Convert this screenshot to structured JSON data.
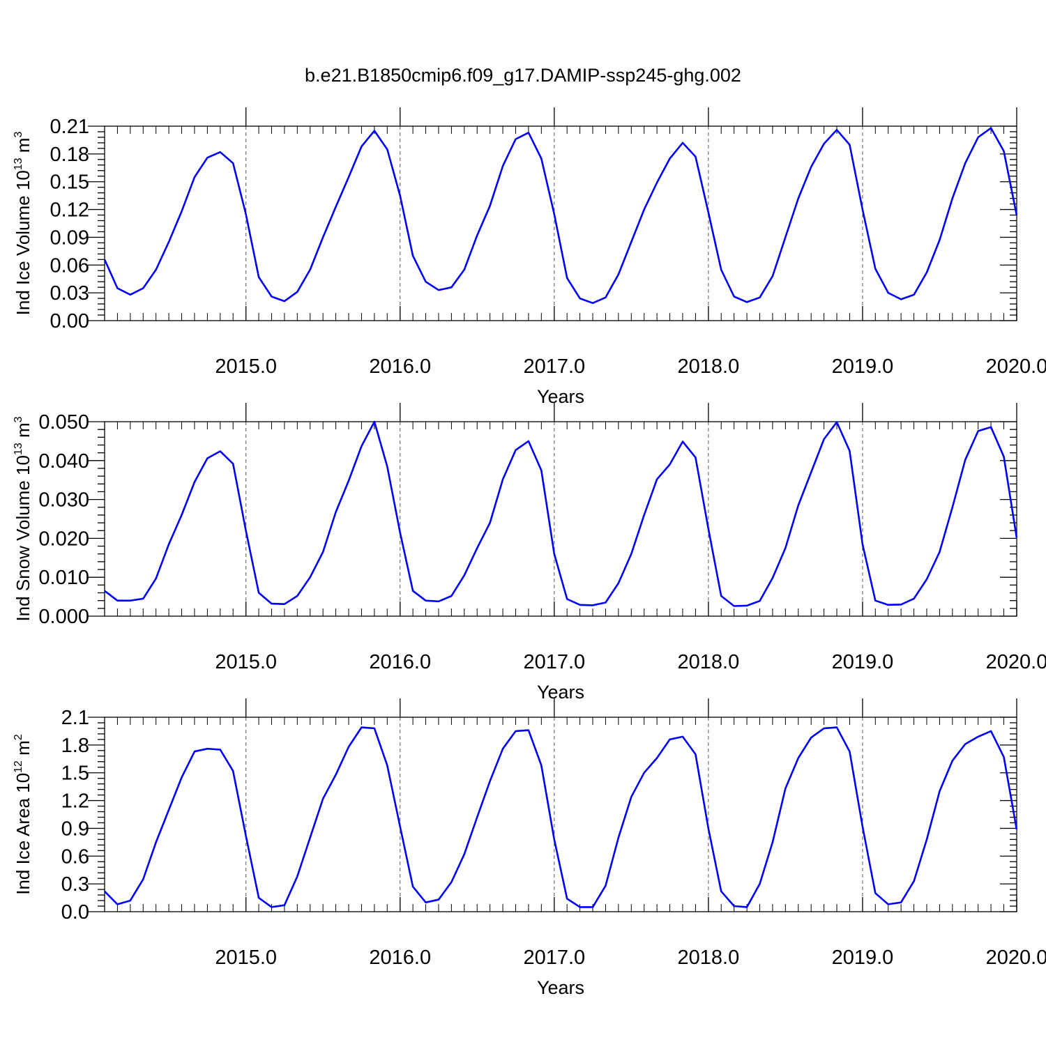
{
  "title": "b.e21.B1850cmip6.f09_g17.DAMIP-ssp245-ghg.002",
  "colors": {
    "series": "#0000ff",
    "axes": "#000000"
  },
  "chart_data": [
    {
      "type": "line",
      "title": "",
      "xlabel": "Years",
      "ylabel": {
        "text": "Ind Ice Volume 10",
        "exponent": "13",
        "unit": " m",
        "unit_exponent": "3"
      },
      "xlim": [
        2014.083,
        2020.0
      ],
      "ylim": [
        0.0,
        0.21
      ],
      "x_ticks": [
        "2015.0",
        "2016.0",
        "2017.0",
        "2018.0",
        "2019.0",
        "2020.0"
      ],
      "y_ticks": [
        "0.00",
        "0.03",
        "0.06",
        "0.09",
        "0.12",
        "0.15",
        "0.18",
        "0.21"
      ],
      "grid": "dashed vertical at each year",
      "series": [
        {
          "values": [
            0.066,
            0.035,
            0.028,
            0.035,
            0.055,
            0.085,
            0.118,
            0.155,
            0.176,
            0.182,
            0.17,
            0.115,
            0.047,
            0.026,
            0.021,
            0.031,
            0.055,
            0.09,
            0.123,
            0.155,
            0.188,
            0.205,
            0.185,
            0.135,
            0.07,
            0.042,
            0.033,
            0.036,
            0.055,
            0.092,
            0.124,
            0.167,
            0.196,
            0.203,
            0.175,
            0.115,
            0.046,
            0.024,
            0.019,
            0.025,
            0.05,
            0.085,
            0.12,
            0.149,
            0.175,
            0.192,
            0.177,
            0.117,
            0.055,
            0.026,
            0.02,
            0.025,
            0.048,
            0.09,
            0.132,
            0.166,
            0.191,
            0.206,
            0.19,
            0.12,
            0.056,
            0.03,
            0.023,
            0.028,
            0.052,
            0.087,
            0.132,
            0.17,
            0.198,
            0.208,
            0.183,
            0.114
          ]
        }
      ]
    },
    {
      "type": "line",
      "title": "",
      "xlabel": "Years",
      "ylabel": {
        "text": "Ind Snow Volume 10",
        "exponent": "13",
        "unit": " m",
        "unit_exponent": "3"
      },
      "xlim": [
        2014.083,
        2020.0
      ],
      "ylim": [
        0.0,
        0.05
      ],
      "x_ticks": [
        "2015.0",
        "2016.0",
        "2017.0",
        "2018.0",
        "2019.0",
        "2020.0"
      ],
      "y_ticks": [
        "0.000",
        "0.010",
        "0.020",
        "0.030",
        "0.040",
        "0.050"
      ],
      "grid": "dashed vertical at each year",
      "series": [
        {
          "values": [
            0.0065,
            0.004,
            0.004,
            0.0045,
            0.0097,
            0.0185,
            0.026,
            0.0345,
            0.0406,
            0.0424,
            0.0392,
            0.022,
            0.006,
            0.0032,
            0.0031,
            0.0052,
            0.01,
            0.0165,
            0.0268,
            0.0348,
            0.0437,
            0.05,
            0.0385,
            0.0215,
            0.0065,
            0.004,
            0.0038,
            0.0052,
            0.0105,
            0.0175,
            0.024,
            0.0352,
            0.0427,
            0.045,
            0.0375,
            0.016,
            0.0044,
            0.0029,
            0.0028,
            0.0035,
            0.0085,
            0.016,
            0.026,
            0.0352,
            0.039,
            0.0449,
            0.0408,
            0.0225,
            0.0052,
            0.0026,
            0.0027,
            0.0039,
            0.0098,
            0.0175,
            0.0285,
            0.037,
            0.0455,
            0.0499,
            0.0425,
            0.0185,
            0.004,
            0.0029,
            0.003,
            0.0045,
            0.0095,
            0.0165,
            0.028,
            0.0402,
            0.0476,
            0.0486,
            0.041,
            0.0202
          ]
        }
      ]
    },
    {
      "type": "line",
      "title": "",
      "xlabel": "Years",
      "ylabel": {
        "text": "Ind Ice Area 10",
        "exponent": "12",
        "unit": " m",
        "unit_exponent": "2"
      },
      "xlim": [
        2014.083,
        2020.0
      ],
      "ylim": [
        0.0,
        2.1
      ],
      "x_ticks": [
        "2015.0",
        "2016.0",
        "2017.0",
        "2018.0",
        "2019.0",
        "2020.0"
      ],
      "y_ticks": [
        "0.0",
        "0.3",
        "0.6",
        "0.9",
        "1.2",
        "1.5",
        "1.8",
        "2.1"
      ],
      "grid": "dashed vertical at each year",
      "series": [
        {
          "values": [
            0.22,
            0.08,
            0.12,
            0.35,
            0.75,
            1.1,
            1.45,
            1.73,
            1.76,
            1.75,
            1.52,
            0.82,
            0.15,
            0.05,
            0.07,
            0.38,
            0.8,
            1.22,
            1.48,
            1.78,
            1.99,
            1.98,
            1.58,
            0.92,
            0.27,
            0.1,
            0.13,
            0.32,
            0.62,
            1.02,
            1.41,
            1.76,
            1.95,
            1.96,
            1.58,
            0.78,
            0.14,
            0.05,
            0.05,
            0.28,
            0.8,
            1.24,
            1.5,
            1.66,
            1.86,
            1.89,
            1.7,
            0.9,
            0.22,
            0.06,
            0.05,
            0.3,
            0.75,
            1.33,
            1.66,
            1.88,
            1.98,
            1.99,
            1.73,
            0.92,
            0.2,
            0.08,
            0.1,
            0.33,
            0.78,
            1.3,
            1.63,
            1.81,
            1.89,
            1.95,
            1.67,
            0.89
          ]
        }
      ]
    }
  ]
}
